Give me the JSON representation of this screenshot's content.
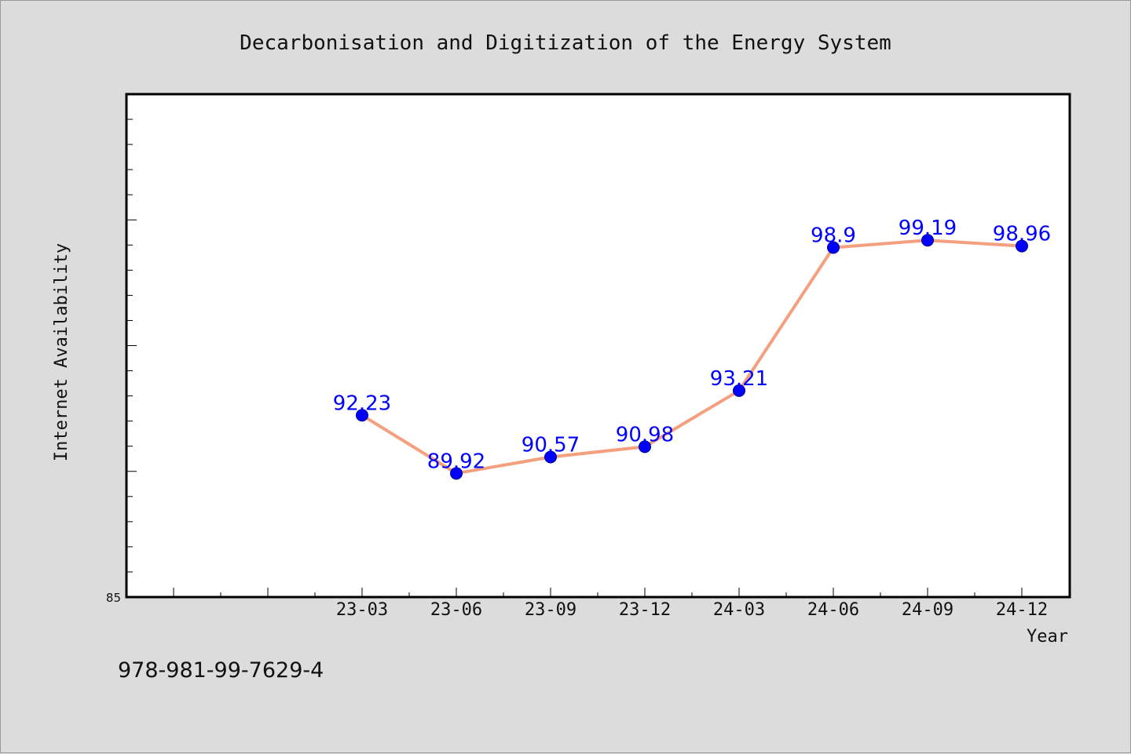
{
  "chart_data": {
    "type": "line",
    "title": "Decarbonisation and Digitization of the Energy System",
    "xlabel": "Year",
    "ylabel": "Internet Availability",
    "categories": [
      "23-03",
      "23-06",
      "23-09",
      "23-12",
      "24-03",
      "24-06",
      "24-09",
      "24-12"
    ],
    "values": [
      92.23,
      89.92,
      90.57,
      90.98,
      93.21,
      98.9,
      99.19,
      98.96
    ],
    "data_labels": [
      "92.23",
      "89.92",
      "90.57",
      "90.98",
      "93.21",
      "98.9",
      "99.19",
      "98.96"
    ],
    "ylim": [
      85,
      105
    ],
    "ytick_labels": [
      "85"
    ],
    "grid": false,
    "line_color": "#f4a07e",
    "marker_color": "#0000ff",
    "label_color": "#0000ff",
    "background": "#dcdcdc",
    "plot_background": "#ffffff"
  },
  "footer": {
    "text": "978-981-99-7629-4"
  }
}
